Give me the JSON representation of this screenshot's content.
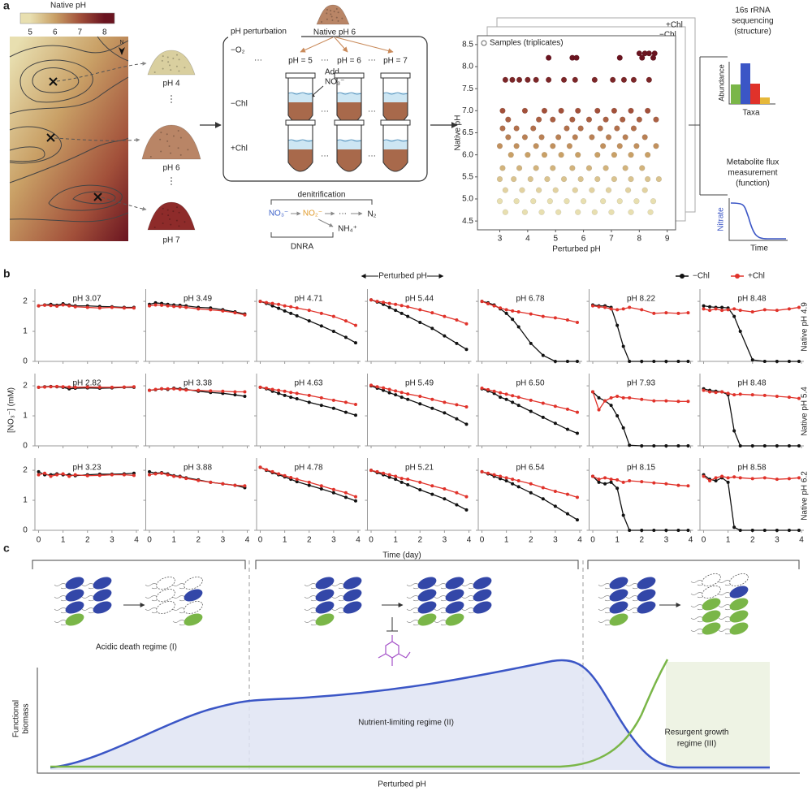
{
  "panel_labels": [
    "a",
    "b",
    "c"
  ],
  "map": {
    "colorbar_title": "Native pH",
    "colorbar_ticks": [
      5,
      6,
      7,
      8
    ],
    "colormap": [
      "#e8dfb0",
      "#c9a066",
      "#a2503a",
      "#6a1420"
    ],
    "compass": "N"
  },
  "soils": [
    "pH 4",
    "pH 6",
    "pH 7"
  ],
  "perturbation": {
    "source": "Native pH 6",
    "title": "pH perturbation",
    "rows": [
      "−O₂",
      "−Chl",
      "+Chl"
    ],
    "columns": [
      "pH = 5",
      "pH = 6",
      "pH = 7"
    ],
    "add": [
      "Add",
      "NO₃⁻"
    ],
    "ellipsis": "···"
  },
  "pathway": {
    "denitrification": "denitrification",
    "species": [
      "NO₃⁻",
      "NO₂⁻",
      "···",
      "N₂",
      "NH₄⁺"
    ],
    "dnra": "DNRA"
  },
  "outputs": {
    "sequencing": [
      "16s rRNA",
      "sequencing",
      "(structure)"
    ],
    "abundance": "Abundance",
    "taxa": "Taxa",
    "flux": [
      "Metabolite flux",
      "measurement",
      "(function)"
    ],
    "nitrate": "Nitrate",
    "time": "Time"
  },
  "chart_data": [
    {
      "type": "scatter",
      "legend": "Samples (triplicates)",
      "stack_labels": [
        "+Chl",
        "−Chl"
      ],
      "xlabel": "Perturbed pH",
      "ylabel": "Native pH",
      "xlim": [
        2.2,
        9.3
      ],
      "xticks": [
        3,
        4,
        5,
        6,
        7,
        8,
        9
      ],
      "ylim": [
        4.3,
        8.7
      ],
      "yticks": [
        4.5,
        {
          "value": 5,
          "label": "5.0"
        },
        5.5,
        {
          "value": 6,
          "label": "6.0"
        },
        6.5,
        {
          "value": 7,
          "label": "7.0"
        },
        7.5,
        {
          "value": 8,
          "label": "8.0"
        },
        8.5
      ],
      "x": [
        8.0,
        8.2,
        8.35,
        8.55,
        4.75,
        5.6,
        5.75,
        7.3,
        8.1,
        8.5,
        3.2,
        3.45,
        3.7,
        4.0,
        4.3,
        4.75,
        5.3,
        5.7,
        6.4,
        7.05,
        7.45,
        7.8,
        8.35,
        3.1,
        3.9,
        4.6,
        5.2,
        5.8,
        6.5,
        7.1,
        7.7,
        8.3,
        3.3,
        4.4,
        4.9,
        5.6,
        6.2,
        6.8,
        7.4,
        8.0,
        8.6,
        3.1,
        3.6,
        4.2,
        5.4,
        5.9,
        6.6,
        7.2,
        7.8,
        3.3,
        3.9,
        4.5,
        5.1,
        5.7,
        6.3,
        6.9,
        7.5,
        8.2,
        3.0,
        3.6,
        4.3,
        4.9,
        5.5,
        6.7,
        7.3,
        7.9,
        8.6,
        3.4,
        4.0,
        4.6,
        5.2,
        5.8,
        6.5,
        7.1,
        7.7,
        8.3,
        3.1,
        3.7,
        4.3,
        4.9,
        5.6,
        6.2,
        6.8,
        7.5,
        8.1,
        3.0,
        3.5,
        4.1,
        4.7,
        5.3,
        5.9,
        6.5,
        7.1,
        7.7,
        8.3,
        8.7,
        3.2,
        3.8,
        4.4,
        5.0,
        5.7,
        6.3,
        6.9,
        7.6,
        8.2,
        3.0,
        3.6,
        4.2,
        4.8,
        5.4,
        6.0,
        6.7,
        7.3,
        7.9,
        8.5,
        3.2,
        3.9,
        4.5,
        5.1,
        5.8,
        6.4,
        7.0,
        7.7,
        8.4
      ],
      "y": [
        8.3,
        8.3,
        8.3,
        8.3,
        8.2,
        8.2,
        8.2,
        8.2,
        8.2,
        8.2,
        7.7,
        7.7,
        7.7,
        7.7,
        7.7,
        7.7,
        7.7,
        7.7,
        7.7,
        7.7,
        7.7,
        7.7,
        7.7,
        7,
        7,
        7,
        7,
        7,
        7,
        7,
        7,
        7,
        6.8,
        6.8,
        6.8,
        6.8,
        6.8,
        6.8,
        6.8,
        6.8,
        6.8,
        6.6,
        6.6,
        6.6,
        6.6,
        6.6,
        6.6,
        6.6,
        6.6,
        6.4,
        6.4,
        6.4,
        6.4,
        6.4,
        6.4,
        6.4,
        6.4,
        6.4,
        6.2,
        6.2,
        6.2,
        6.2,
        6.2,
        6.2,
        6.2,
        6.2,
        6.2,
        6,
        6,
        6,
        6,
        6,
        6,
        6,
        6,
        6,
        5.7,
        5.7,
        5.7,
        5.7,
        5.7,
        5.7,
        5.7,
        5.7,
        5.7,
        5.45,
        5.45,
        5.45,
        5.45,
        5.45,
        5.45,
        5.45,
        5.45,
        5.45,
        5.45,
        5.45,
        5.2,
        5.2,
        5.2,
        5.2,
        5.2,
        5.2,
        5.2,
        5.2,
        5.2,
        4.95,
        4.95,
        4.95,
        4.95,
        4.95,
        4.95,
        4.95,
        4.95,
        4.95,
        4.95,
        4.7,
        4.7,
        4.7,
        4.7,
        4.7,
        4.7,
        4.7,
        4.7,
        4.7
      ]
    },
    {
      "type": "line_grid",
      "title": "Perturbed pH",
      "xlabel": "Time (day)",
      "ylabel": "[NO₃⁻] (mM)",
      "row_labels": [
        "Native pH 4.9",
        "Native pH 5.4",
        "Native pH 6.2"
      ],
      "legend": [
        {
          "name": "−Chl",
          "color": "#111111"
        },
        {
          "name": "+Chl",
          "color": "#e0322a"
        }
      ],
      "xlim": [
        -0.15,
        4.1
      ],
      "xticks": [
        0,
        1,
        2,
        3,
        4
      ],
      "ylim": [
        0,
        2.3
      ],
      "yticks": [
        0,
        1,
        2
      ],
      "x": [
        0,
        0.25,
        0.5,
        0.75,
        1,
        1.25,
        1.5,
        2,
        2.5,
        3,
        3.5,
        3.9
      ],
      "panels": [
        {
          "title": "pH 3.07",
          "series": [
            [
              1.85,
              1.88,
              1.9,
              1.87,
              1.92,
              1.88,
              1.85,
              1.85,
              1.83,
              1.82,
              1.8,
              1.8
            ],
            [
              1.85,
              1.87,
              1.86,
              1.84,
              1.88,
              1.85,
              1.82,
              1.8,
              1.78,
              1.8,
              1.78,
              1.78
            ]
          ]
        },
        {
          "title": "pH 3.49",
          "series": [
            [
              1.9,
              1.95,
              1.93,
              1.9,
              1.88,
              1.87,
              1.85,
              1.8,
              1.78,
              1.72,
              1.65,
              1.58
            ],
            [
              1.85,
              1.88,
              1.87,
              1.85,
              1.83,
              1.82,
              1.8,
              1.75,
              1.72,
              1.68,
              1.62,
              1.55
            ]
          ]
        },
        {
          "title": "pH 4.71",
          "series": [
            [
              2,
              1.93,
              1.85,
              1.77,
              1.68,
              1.6,
              1.52,
              1.35,
              1.18,
              1,
              0.8,
              0.62
            ],
            [
              2,
              1.96,
              1.93,
              1.9,
              1.85,
              1.82,
              1.78,
              1.7,
              1.6,
              1.5,
              1.35,
              1.2
            ]
          ]
        },
        {
          "title": "pH 5.44",
          "series": [
            [
              2.05,
              1.98,
              1.9,
              1.8,
              1.7,
              1.6,
              1.5,
              1.3,
              1.1,
              0.85,
              0.6,
              0.4
            ],
            [
              2.05,
              2,
              1.97,
              1.93,
              1.9,
              1.86,
              1.82,
              1.72,
              1.62,
              1.5,
              1.38,
              1.25
            ]
          ]
        },
        {
          "title": "pH 6.78",
          "series": [
            [
              2,
              1.95,
              1.88,
              1.75,
              1.6,
              1.4,
              1.15,
              0.6,
              0.2,
              0,
              0,
              0
            ],
            [
              2,
              1.92,
              1.85,
              1.78,
              1.72,
              1.68,
              1.65,
              1.58,
              1.5,
              1.45,
              1.38,
              1.3
            ]
          ]
        },
        {
          "title": "pH 8.22",
          "series": [
            [
              1.88,
              1.85,
              1.85,
              1.8,
              1.2,
              0.5,
              0,
              0,
              0,
              0,
              0,
              0
            ],
            [
              1.85,
              1.82,
              1.8,
              1.75,
              1.72,
              1.75,
              1.8,
              1.72,
              1.6,
              1.62,
              1.6,
              1.62
            ]
          ]
        },
        {
          "title": "pH 8.48",
          "series": [
            [
              1.85,
              1.82,
              1.8,
              1.8,
              1.78,
              1.5,
              1,
              0.05,
              0,
              0,
              0,
              0
            ],
            [
              1.75,
              1.7,
              1.75,
              1.7,
              1.72,
              1.75,
              1.7,
              1.65,
              1.72,
              1.7,
              1.75,
              1.8
            ]
          ]
        },
        {
          "title": "pH 2.82",
          "series": [
            [
              1.95,
              1.97,
              1.98,
              1.97,
              1.95,
              1.9,
              1.92,
              1.93,
              1.92,
              1.93,
              1.95,
              1.95
            ],
            [
              1.95,
              1.96,
              1.97,
              1.98,
              1.97,
              1.96,
              1.95,
              1.96,
              1.95,
              1.95,
              1.96,
              1.97
            ]
          ]
        },
        {
          "title": "pH 3.38",
          "series": [
            [
              1.85,
              1.87,
              1.9,
              1.88,
              1.92,
              1.9,
              1.88,
              1.82,
              1.78,
              1.75,
              1.7,
              1.65
            ],
            [
              1.85,
              1.88,
              1.9,
              1.9,
              1.9,
              1.88,
              1.86,
              1.85,
              1.83,
              1.82,
              1.8,
              1.8
            ]
          ]
        },
        {
          "title": "pH 4.63",
          "series": [
            [
              1.95,
              1.9,
              1.82,
              1.75,
              1.68,
              1.62,
              1.57,
              1.45,
              1.35,
              1.25,
              1.12,
              1.02
            ],
            [
              1.95,
              1.92,
              1.88,
              1.85,
              1.82,
              1.78,
              1.75,
              1.68,
              1.6,
              1.52,
              1.45,
              1.38
            ]
          ]
        },
        {
          "title": "pH 5.49",
          "series": [
            [
              2,
              1.92,
              1.85,
              1.77,
              1.7,
              1.62,
              1.55,
              1.4,
              1.25,
              1.1,
              0.9,
              0.72
            ],
            [
              2.02,
              1.97,
              1.93,
              1.88,
              1.83,
              1.78,
              1.73,
              1.65,
              1.55,
              1.45,
              1.37,
              1.3
            ]
          ]
        },
        {
          "title": "pH 6.50",
          "series": [
            [
              1.9,
              1.83,
              1.75,
              1.62,
              1.55,
              1.45,
              1.35,
              1.15,
              0.95,
              0.75,
              0.55,
              0.42
            ],
            [
              1.92,
              1.87,
              1.82,
              1.77,
              1.72,
              1.67,
              1.62,
              1.52,
              1.42,
              1.32,
              1.22,
              1.12
            ]
          ]
        },
        {
          "title": "pH 7.93",
          "series": [
            [
              1.8,
              1.6,
              1.5,
              1.35,
              1,
              0.6,
              0.02,
              0,
              0,
              0,
              0,
              0
            ],
            [
              1.8,
              1.2,
              1.5,
              1.6,
              1.65,
              1.6,
              1.6,
              1.55,
              1.5,
              1.5,
              1.48,
              1.48
            ]
          ]
        },
        {
          "title": "pH 8.48",
          "series": [
            [
              1.9,
              1.85,
              1.82,
              1.8,
              1.7,
              0.5,
              0,
              0,
              0,
              0,
              0,
              0
            ],
            [
              1.85,
              1.8,
              1.78,
              1.8,
              1.75,
              1.7,
              1.72,
              1.7,
              1.68,
              1.65,
              1.62,
              1.58
            ]
          ]
        },
        {
          "title": "pH 3.23",
          "series": [
            [
              1.95,
              1.85,
              1.85,
              1.88,
              1.85,
              1.85,
              1.82,
              1.85,
              1.87,
              1.87,
              1.88,
              1.9
            ],
            [
              1.85,
              1.9,
              1.8,
              1.85,
              1.88,
              1.8,
              1.85,
              1.82,
              1.83,
              1.85,
              1.85,
              1.83
            ]
          ]
        },
        {
          "title": "pH 3.88",
          "series": [
            [
              1.95,
              1.9,
              1.92,
              1.88,
              1.82,
              1.8,
              1.75,
              1.68,
              1.6,
              1.55,
              1.5,
              1.42
            ],
            [
              1.85,
              1.88,
              1.9,
              1.85,
              1.8,
              1.78,
              1.73,
              1.66,
              1.6,
              1.55,
              1.5,
              1.48
            ]
          ]
        },
        {
          "title": "pH 4.78",
          "series": [
            [
              2.1,
              2,
              1.92,
              1.85,
              1.78,
              1.7,
              1.62,
              1.5,
              1.38,
              1.25,
              1.1,
              0.98
            ],
            [
              2.1,
              2.02,
              1.95,
              1.88,
              1.82,
              1.76,
              1.7,
              1.6,
              1.48,
              1.36,
              1.25,
              1.12
            ]
          ]
        },
        {
          "title": "pH 5.21",
          "series": [
            [
              2,
              1.92,
              1.85,
              1.77,
              1.7,
              1.6,
              1.52,
              1.35,
              1.2,
              1.05,
              0.85,
              0.68
            ],
            [
              2,
              1.95,
              1.9,
              1.85,
              1.8,
              1.73,
              1.7,
              1.6,
              1.48,
              1.38,
              1.25,
              1.12
            ]
          ]
        },
        {
          "title": "pH 6.54",
          "series": [
            [
              1.95,
              1.88,
              1.8,
              1.72,
              1.65,
              1.55,
              1.45,
              1.25,
              1.05,
              0.8,
              0.55,
              0.35
            ],
            [
              1.95,
              1.9,
              1.85,
              1.8,
              1.75,
              1.7,
              1.65,
              1.55,
              1.42,
              1.3,
              1.2,
              1.1
            ]
          ]
        },
        {
          "title": "pH 8.15",
          "series": [
            [
              1.8,
              1.6,
              1.55,
              1.6,
              1.4,
              0.5,
              0,
              0,
              0,
              0,
              0,
              0
            ],
            [
              1.8,
              1.7,
              1.75,
              1.7,
              1.68,
              1.6,
              1.65,
              1.62,
              1.58,
              1.55,
              1.5,
              1.48
            ]
          ]
        },
        {
          "title": "pH 8.58",
          "series": [
            [
              1.85,
              1.7,
              1.65,
              1.75,
              1.6,
              0.1,
              0,
              0,
              0,
              0,
              0,
              0
            ],
            [
              1.8,
              1.65,
              1.75,
              1.8,
              1.75,
              1.78,
              1.75,
              1.72,
              1.75,
              1.7,
              1.72,
              1.75
            ]
          ]
        }
      ]
    }
  ],
  "panel_c": {
    "ylabel": [
      "Functional",
      "biomass"
    ],
    "xlabel": "Perturbed pH",
    "regime1": "Acidic death regime (I)",
    "regime2": "Nutrient-limiting regime (II)",
    "regime3": [
      "Resurgent growth",
      "regime (III)"
    ]
  }
}
